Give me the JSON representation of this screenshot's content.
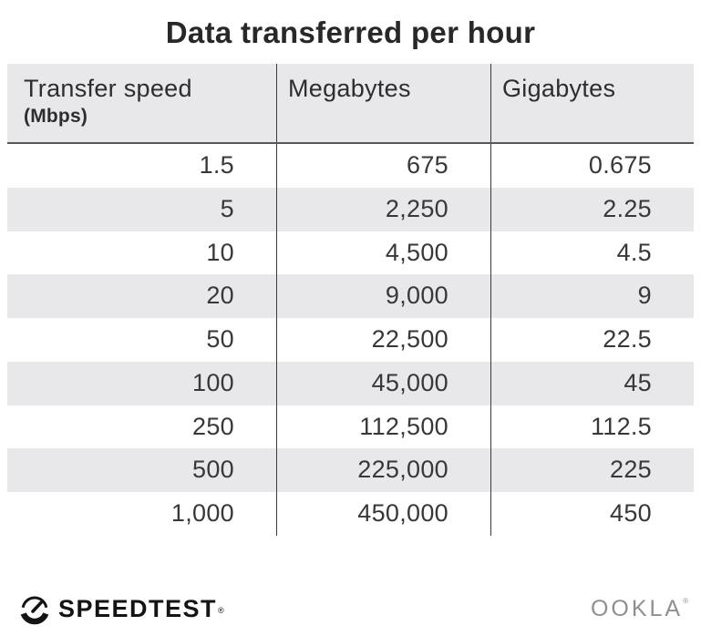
{
  "title": "Data transferred per hour",
  "table": {
    "columns": [
      {
        "label": "Transfer speed",
        "sublabel": "(Mbps)"
      },
      {
        "label": "Megabytes",
        "sublabel": ""
      },
      {
        "label": "Gigabytes",
        "sublabel": ""
      }
    ],
    "rows": [
      [
        "1.5",
        "675",
        "0.675"
      ],
      [
        "5",
        "2,250",
        "2.25"
      ],
      [
        "10",
        "4,500",
        "4.5"
      ],
      [
        "20",
        "9,000",
        "9"
      ],
      [
        "50",
        "22,500",
        "22.5"
      ],
      [
        "100",
        "45,000",
        "45"
      ],
      [
        "250",
        "112,500",
        "112.5"
      ],
      [
        "500",
        "225,000",
        "225"
      ],
      [
        "1,000",
        "450,000",
        "450"
      ]
    ]
  },
  "chart_data": {
    "type": "table",
    "title": "Data transferred per hour",
    "columns": [
      "Transfer speed (Mbps)",
      "Megabytes",
      "Gigabytes"
    ],
    "rows": [
      [
        1.5,
        675,
        0.675
      ],
      [
        5,
        2250,
        2.25
      ],
      [
        10,
        4500,
        4.5
      ],
      [
        20,
        9000,
        9
      ],
      [
        50,
        22500,
        22.5
      ],
      [
        100,
        45000,
        45
      ],
      [
        250,
        112500,
        112.5
      ],
      [
        500,
        225000,
        225
      ],
      [
        1000,
        450000,
        450
      ]
    ]
  },
  "footer": {
    "speedtest_label": "SPEEDTEST",
    "speedtest_trademark": "®",
    "ookla_label": "OOKLA",
    "ookla_trademark": "®"
  },
  "colors": {
    "background": "#ffffff",
    "title_text": "#28282b",
    "header_bg": "#e8e8eb",
    "stripe_bg": "#e8e8eb",
    "header_text": "#2d2d30",
    "cell_text": "#38383b",
    "divider": "#3a3a3c",
    "header_border": "#58585a",
    "logo_black": "#141414",
    "ookla_gray": "#8f8f8f"
  }
}
